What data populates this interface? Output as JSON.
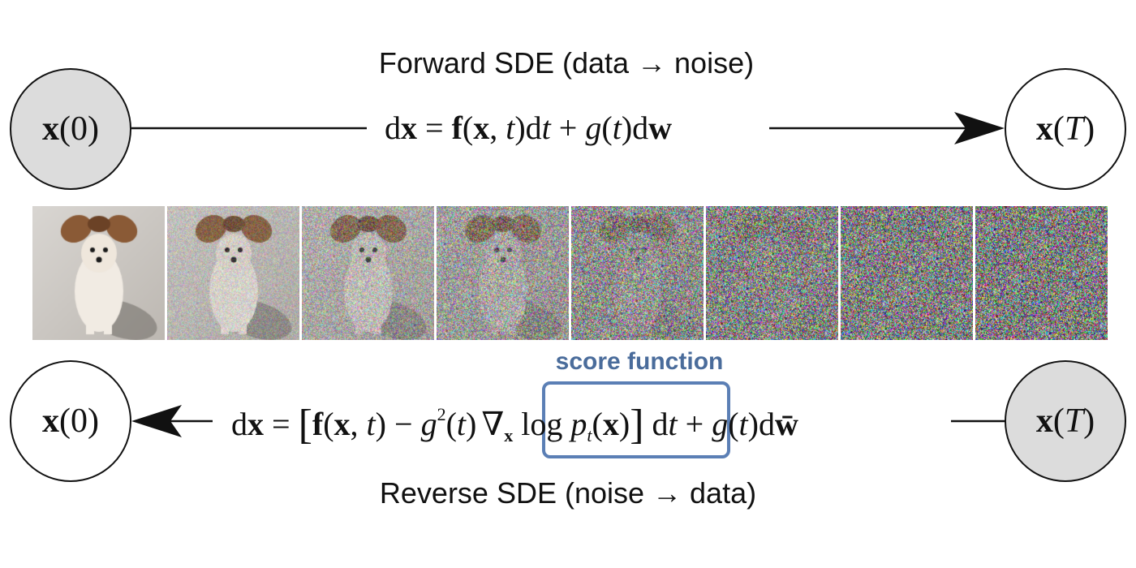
{
  "forward": {
    "caption": "Forward SDE (data → noise)",
    "equation": "dx = f(x, t)dt + g(t)dw",
    "start_node": "x(0)",
    "end_node": "x(T)"
  },
  "reverse": {
    "caption": "Reverse SDE (noise → data)",
    "equation": "dx = [f(x, t) − g²(t)∇x log pt(x)] dt + g(t)dw̄",
    "start_node": "x(T)",
    "end_node": "x(0)"
  },
  "score": {
    "label": "score function",
    "term": "∇x log pt(x)"
  },
  "strip": {
    "panels": [
      {
        "noise_level": 0.0
      },
      {
        "noise_level": 0.25
      },
      {
        "noise_level": 0.45
      },
      {
        "noise_level": 0.62
      },
      {
        "noise_level": 0.8
      },
      {
        "noise_level": 0.92
      },
      {
        "noise_level": 0.97
      },
      {
        "noise_level": 1.0
      }
    ]
  },
  "colors": {
    "node_gray": "#dcdcdc",
    "score_accent": "#5b7fb5",
    "score_label": "#4a6c9b",
    "line": "#111111"
  }
}
